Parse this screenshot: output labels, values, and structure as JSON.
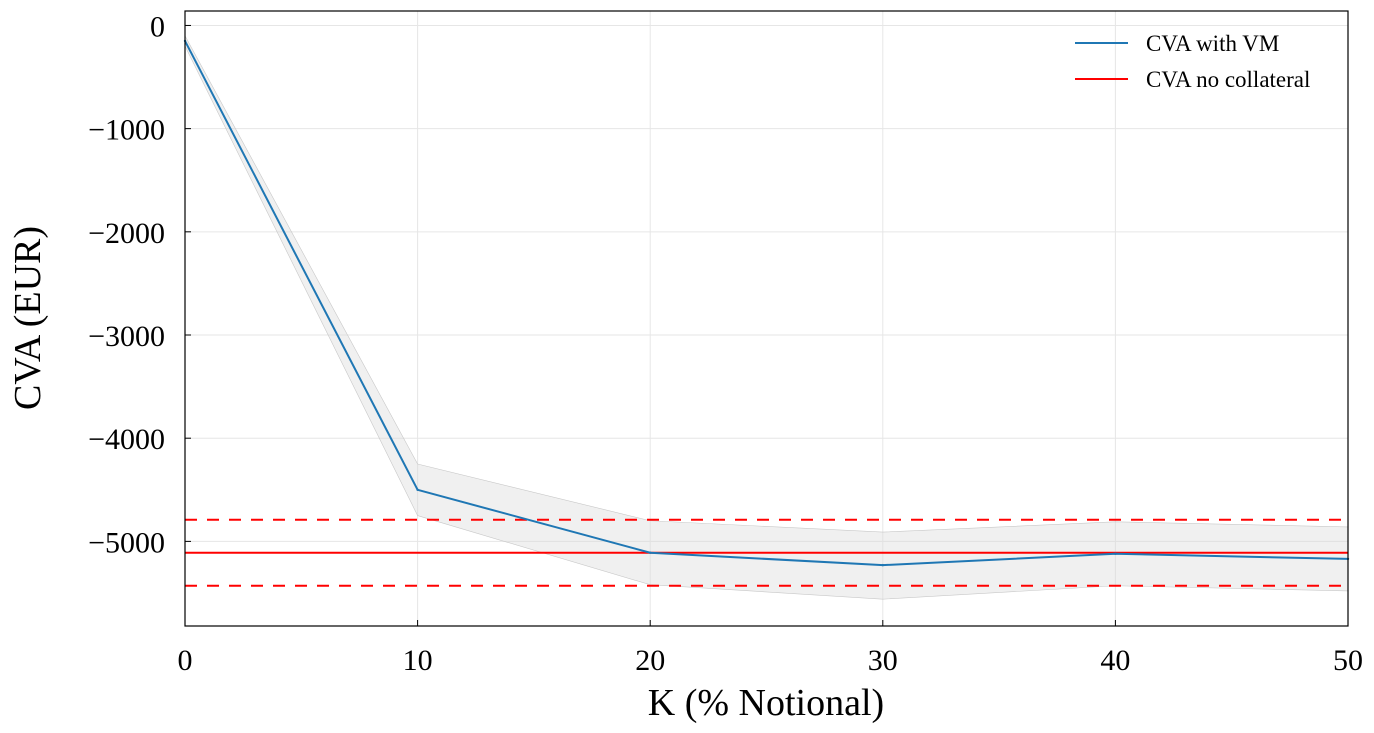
{
  "chart_data": {
    "type": "line",
    "xlabel": "K (% Notional)",
    "ylabel": "CVA (EUR)",
    "xlim": [
      0,
      50
    ],
    "ylim": [
      -5820,
      140
    ],
    "xticks": [
      0,
      10,
      20,
      30,
      40,
      50
    ],
    "xtick_labels": [
      "0",
      "10",
      "20",
      "30",
      "40",
      "50"
    ],
    "yticks": [
      0,
      -1000,
      -2000,
      -3000,
      -4000,
      -5000
    ],
    "ytick_labels": [
      "0",
      "−1000",
      "−2000",
      "−3000",
      "−4000",
      "−5000"
    ],
    "grid": true,
    "legend_position": "top-right",
    "x": [
      0,
      10,
      20,
      30,
      40,
      50
    ],
    "series": [
      {
        "name": "CVA with VM",
        "color": "#1f77b4",
        "values": [
          -150,
          -4500,
          -5110,
          -5230,
          -5120,
          -5170
        ],
        "band_lower": [
          -200,
          -4750,
          -5420,
          -5560,
          -5430,
          -5480
        ],
        "band_upper": [
          -100,
          -4250,
          -4800,
          -4910,
          -4810,
          -4860
        ],
        "band_color": "#d9d9d9"
      },
      {
        "name": "CVA no collateral",
        "color": "#ff0000",
        "constant": -5110,
        "ci_lower": -5430,
        "ci_upper": -4790
      }
    ]
  }
}
